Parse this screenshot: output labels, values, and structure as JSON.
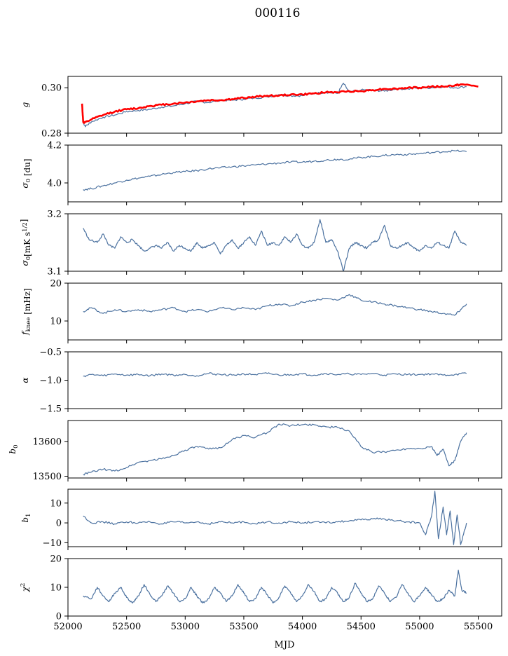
{
  "figure": {
    "title": "000116",
    "xlabel": "MJD"
  },
  "chart_data": [
    {
      "type": "line",
      "id": "g",
      "ylabel": "g",
      "xlim": [
        52000,
        55700
      ],
      "ylim": [
        0.28,
        0.305
      ],
      "yticks": [
        0.28,
        0.3
      ],
      "ytick_labels": [
        "0.28",
        "0.30"
      ],
      "series": [
        {
          "color": "#4c72a0",
          "x": [
            52130,
            52150,
            52200,
            52300,
            52400,
            52500,
            52600,
            52700,
            52800,
            52900,
            53000,
            53100,
            53200,
            53300,
            53400,
            53500,
            53600,
            53700,
            53800,
            53900,
            54000,
            54100,
            54200,
            54300,
            54350,
            54400,
            54500,
            54600,
            54700,
            54800,
            54900,
            55000,
            55100,
            55200,
            55300,
            55400
          ],
          "y": [
            0.2845,
            0.283,
            0.285,
            0.287,
            0.288,
            0.2895,
            0.29,
            0.2905,
            0.2915,
            0.292,
            0.293,
            0.294,
            0.2935,
            0.2945,
            0.2945,
            0.295,
            0.2955,
            0.296,
            0.297,
            0.2965,
            0.2965,
            0.2975,
            0.298,
            0.2975,
            0.302,
            0.298,
            0.299,
            0.299,
            0.2985,
            0.2995,
            0.2995,
            0.3,
            0.3,
            0.3005,
            0.3,
            0.3005
          ]
        },
        {
          "color": "#ff0000",
          "x": [
            52120,
            52130,
            52140,
            52200,
            52300,
            52400,
            52500,
            52600,
            52700,
            52800,
            52900,
            53000,
            53100,
            53200,
            53300,
            53400,
            53500,
            53600,
            53700,
            53800,
            53900,
            54000,
            54100,
            54200,
            54300,
            54400,
            54500,
            54600,
            54700,
            54800,
            54900,
            55000,
            55100,
            55200,
            55300,
            55350,
            55500
          ],
          "y": [
            0.293,
            0.285,
            0.2845,
            0.286,
            0.288,
            0.2895,
            0.2905,
            0.291,
            0.292,
            0.2925,
            0.293,
            0.2935,
            0.294,
            0.2945,
            0.2945,
            0.295,
            0.2955,
            0.296,
            0.2965,
            0.2965,
            0.297,
            0.297,
            0.2975,
            0.298,
            0.298,
            0.2985,
            0.2985,
            0.299,
            0.2995,
            0.2995,
            0.3,
            0.3,
            0.3005,
            0.3005,
            0.301,
            0.3015,
            0.3005
          ]
        }
      ]
    },
    {
      "type": "line",
      "id": "sigma0_du",
      "ylabel": "σ0 [du]",
      "xlim": [
        52000,
        55700
      ],
      "ylim": [
        3.9,
        4.2
      ],
      "yticks": [
        4.0,
        4.2
      ],
      "ytick_labels": [
        "4.0",
        "4.2"
      ],
      "series": [
        {
          "color": "#4c72a0",
          "x": [
            52130,
            52200,
            52300,
            52400,
            52500,
            52600,
            52700,
            52800,
            52900,
            53000,
            53100,
            53200,
            53300,
            53400,
            53500,
            53600,
            53700,
            53800,
            53900,
            54000,
            54100,
            54200,
            54300,
            54400,
            54500,
            54600,
            54700,
            54800,
            54900,
            55000,
            55100,
            55200,
            55300,
            55400
          ],
          "y": [
            3.965,
            3.97,
            3.985,
            4.0,
            4.015,
            4.025,
            4.035,
            4.045,
            4.055,
            4.06,
            4.065,
            4.075,
            4.08,
            4.085,
            4.09,
            4.095,
            4.1,
            4.105,
            4.11,
            4.11,
            4.115,
            4.12,
            4.125,
            4.125,
            4.135,
            4.14,
            4.145,
            4.15,
            4.15,
            4.155,
            4.16,
            4.165,
            4.17,
            4.165
          ]
        }
      ]
    },
    {
      "type": "line",
      "id": "sigma0_mk",
      "ylabel": "σ0 [mK s^1/2]",
      "xlim": [
        52000,
        55700
      ],
      "ylim": [
        3.1,
        3.2
      ],
      "yticks": [
        3.1,
        3.2
      ],
      "ytick_labels": [
        "3.1",
        "3.2"
      ],
      "series": [
        {
          "color": "#4c72a0",
          "x": [
            52130,
            52180,
            52250,
            52300,
            52350,
            52400,
            52450,
            52500,
            52550,
            52600,
            52650,
            52700,
            52750,
            52800,
            52850,
            52900,
            52950,
            53000,
            53050,
            53100,
            53150,
            53200,
            53250,
            53300,
            53350,
            53400,
            53450,
            53500,
            53550,
            53600,
            53650,
            53700,
            53750,
            53800,
            53850,
            53900,
            53950,
            54000,
            54050,
            54100,
            54150,
            54200,
            54250,
            54300,
            54350,
            54400,
            54450,
            54500,
            54550,
            54600,
            54650,
            54700,
            54750,
            54800,
            54850,
            54900,
            54950,
            55000,
            55050,
            55100,
            55150,
            55200,
            55250,
            55300,
            55350,
            55400
          ],
          "y": [
            3.175,
            3.155,
            3.15,
            3.165,
            3.145,
            3.14,
            3.16,
            3.15,
            3.155,
            3.145,
            3.135,
            3.14,
            3.145,
            3.14,
            3.15,
            3.135,
            3.145,
            3.14,
            3.135,
            3.15,
            3.14,
            3.145,
            3.15,
            3.13,
            3.145,
            3.155,
            3.14,
            3.15,
            3.16,
            3.145,
            3.17,
            3.145,
            3.15,
            3.145,
            3.16,
            3.15,
            3.165,
            3.145,
            3.14,
            3.15,
            3.19,
            3.15,
            3.155,
            3.135,
            3.1,
            3.14,
            3.15,
            3.145,
            3.14,
            3.15,
            3.155,
            3.18,
            3.145,
            3.14,
            3.145,
            3.15,
            3.14,
            3.135,
            3.145,
            3.14,
            3.15,
            3.145,
            3.14,
            3.17,
            3.15,
            3.145
          ]
        }
      ]
    },
    {
      "type": "line",
      "id": "fknee",
      "ylabel": "f_knee [mHz]",
      "xlim": [
        52000,
        55700
      ],
      "ylim": [
        5,
        20
      ],
      "yticks": [
        10,
        20
      ],
      "ytick_labels": [
        "10",
        "20"
      ],
      "series": [
        {
          "color": "#4c72a0",
          "x": [
            52130,
            52200,
            52300,
            52400,
            52500,
            52600,
            52700,
            52800,
            52900,
            53000,
            53100,
            53200,
            53300,
            53400,
            53500,
            53600,
            53700,
            53800,
            53900,
            54000,
            54100,
            54200,
            54300,
            54400,
            54500,
            54600,
            54700,
            54800,
            54900,
            55000,
            55100,
            55200,
            55300,
            55350,
            55400
          ],
          "y": [
            12.5,
            13.5,
            12.0,
            13.0,
            12.5,
            13.0,
            12.5,
            13.0,
            13.5,
            12.5,
            13.0,
            12.5,
            13.5,
            13.0,
            13.5,
            13.0,
            14.0,
            14.5,
            14.0,
            15.0,
            15.5,
            16.0,
            15.5,
            17.0,
            15.5,
            15.0,
            14.5,
            14.0,
            13.5,
            13.0,
            12.5,
            12.0,
            11.5,
            13.0,
            14.5
          ]
        }
      ]
    },
    {
      "type": "line",
      "id": "alpha",
      "ylabel": "α",
      "xlim": [
        52000,
        55700
      ],
      "ylim": [
        -1.5,
        -0.5
      ],
      "yticks": [
        -1.5,
        -1.0,
        -0.5
      ],
      "ytick_labels": [
        "−1.5",
        "−1.0",
        "−0.5"
      ],
      "series": [
        {
          "color": "#4c72a0",
          "x": [
            52130,
            52200,
            52300,
            52400,
            52500,
            52600,
            52700,
            52800,
            52900,
            53000,
            53100,
            53200,
            53300,
            53400,
            53500,
            53600,
            53700,
            53800,
            53900,
            54000,
            54100,
            54200,
            54300,
            54400,
            54500,
            54600,
            54700,
            54800,
            54900,
            55000,
            55100,
            55200,
            55300,
            55400
          ],
          "y": [
            -0.93,
            -0.9,
            -0.92,
            -0.89,
            -0.91,
            -0.9,
            -0.92,
            -0.89,
            -0.91,
            -0.9,
            -0.92,
            -0.88,
            -0.9,
            -0.91,
            -0.89,
            -0.9,
            -0.88,
            -0.91,
            -0.9,
            -0.89,
            -0.91,
            -0.88,
            -0.9,
            -0.89,
            -0.9,
            -0.88,
            -0.91,
            -0.89,
            -0.9,
            -0.9,
            -0.89,
            -0.91,
            -0.9,
            -0.88
          ]
        }
      ]
    },
    {
      "type": "line",
      "id": "b0",
      "ylabel": "b0",
      "xlim": [
        52000,
        55700
      ],
      "ylim": [
        13495,
        13660
      ],
      "yticks": [
        13500,
        13600
      ],
      "ytick_labels": [
        "13500",
        "13600"
      ],
      "series": [
        {
          "color": "#4c72a0",
          "x": [
            52130,
            52200,
            52300,
            52400,
            52500,
            52600,
            52700,
            52800,
            52900,
            53000,
            53100,
            53200,
            53300,
            53400,
            53500,
            53600,
            53700,
            53800,
            53900,
            54000,
            54100,
            54200,
            54300,
            54400,
            54500,
            54600,
            54700,
            54800,
            54900,
            55000,
            55100,
            55150,
            55200,
            55250,
            55300,
            55350,
            55400
          ],
          "y": [
            13505,
            13512,
            13520,
            13515,
            13525,
            13540,
            13545,
            13550,
            13560,
            13575,
            13585,
            13578,
            13582,
            13605,
            13617,
            13612,
            13625,
            13650,
            13645,
            13648,
            13648,
            13642,
            13640,
            13630,
            13585,
            13568,
            13570,
            13575,
            13580,
            13580,
            13585,
            13560,
            13578,
            13530,
            13545,
            13600,
            13625
          ]
        }
      ]
    },
    {
      "type": "line",
      "id": "b1",
      "ylabel": "b1",
      "xlim": [
        52000,
        55700
      ],
      "ylim": [
        -12,
        17
      ],
      "yticks": [
        -10,
        0,
        10
      ],
      "ytick_labels": [
        "−10",
        "0",
        "10"
      ],
      "series": [
        {
          "color": "#4c72a0",
          "x": [
            52130,
            52200,
            52300,
            52400,
            52500,
            52600,
            52700,
            52800,
            52900,
            53000,
            53100,
            53200,
            53300,
            53400,
            53500,
            53600,
            53700,
            53800,
            53900,
            54000,
            54100,
            54200,
            54300,
            54400,
            54500,
            54600,
            54700,
            54800,
            54900,
            55000,
            55050,
            55100,
            55130,
            55160,
            55200,
            55230,
            55260,
            55290,
            55320,
            55350,
            55400
          ],
          "y": [
            3.5,
            0.0,
            0.5,
            -0.5,
            0.5,
            0.0,
            0.5,
            -0.5,
            0.5,
            0.0,
            0.5,
            -0.5,
            0.5,
            0.0,
            0.5,
            -0.5,
            0.5,
            0.0,
            0.5,
            0.0,
            0.5,
            0.0,
            0.5,
            1.0,
            1.5,
            2.0,
            2.0,
            1.0,
            0.5,
            0.0,
            -6.0,
            3.0,
            16.0,
            -8.0,
            8.0,
            -6.0,
            6.0,
            -11.0,
            4.0,
            -11.0,
            0.0
          ]
        }
      ]
    },
    {
      "type": "line",
      "id": "chi2",
      "ylabel": "χ²",
      "xlim": [
        52000,
        55700
      ],
      "ylim": [
        0,
        20
      ],
      "yticks": [
        0,
        10,
        20
      ],
      "ytick_labels": [
        "0",
        "10",
        "20"
      ],
      "series": [
        {
          "color": "#4c72a0",
          "x": [
            52130,
            52200,
            52250,
            52300,
            52350,
            52400,
            52450,
            52500,
            52550,
            52600,
            52650,
            52700,
            52750,
            52800,
            52850,
            52900,
            52950,
            53000,
            53050,
            53100,
            53150,
            53200,
            53250,
            53300,
            53350,
            53400,
            53450,
            53500,
            53550,
            53600,
            53650,
            53700,
            53750,
            53800,
            53850,
            53900,
            53950,
            54000,
            54050,
            54100,
            54150,
            54200,
            54250,
            54300,
            54350,
            54400,
            54450,
            54500,
            54550,
            54600,
            54650,
            54700,
            54750,
            54800,
            54850,
            54900,
            54950,
            55000,
            55050,
            55100,
            55150,
            55200,
            55250,
            55300,
            55330,
            55360,
            55400
          ],
          "y": [
            7.0,
            6.0,
            10.0,
            7.0,
            5.0,
            8.0,
            10.0,
            6.5,
            4.5,
            7.0,
            11.0,
            7.5,
            5.0,
            7.0,
            10.5,
            8.0,
            5.0,
            6.0,
            10.0,
            7.0,
            4.5,
            6.0,
            10.0,
            8.0,
            5.0,
            7.0,
            11.0,
            8.0,
            5.0,
            6.0,
            10.0,
            7.5,
            4.5,
            6.5,
            10.5,
            8.0,
            5.0,
            7.0,
            11.0,
            8.5,
            5.0,
            6.0,
            10.0,
            8.0,
            5.0,
            6.5,
            11.5,
            8.0,
            5.0,
            6.0,
            10.5,
            8.0,
            5.0,
            6.5,
            11.0,
            8.0,
            5.0,
            7.0,
            10.0,
            7.5,
            5.0,
            6.0,
            9.0,
            7.0,
            16.0,
            9.0,
            8.0
          ]
        }
      ]
    }
  ],
  "xaxis": {
    "ticks": [
      52000,
      52500,
      53000,
      53500,
      54000,
      54500,
      55000,
      55500
    ],
    "tick_labels": [
      "52000",
      "52500",
      "53000",
      "53500",
      "54000",
      "54500",
      "55000",
      "55500"
    ]
  }
}
